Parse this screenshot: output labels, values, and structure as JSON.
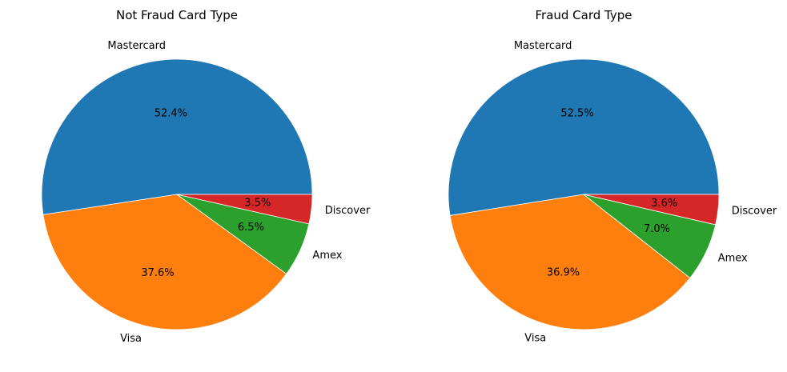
{
  "chart_data": [
    {
      "type": "pie",
      "title": "Not Fraud Card Type",
      "categories": [
        "Mastercard",
        "Visa",
        "Amex",
        "Discover"
      ],
      "values": [
        52.4,
        37.6,
        6.5,
        3.5
      ],
      "labels": [
        "52.4%",
        "37.6%",
        "6.5%",
        "3.5%"
      ],
      "colors": [
        "#1f77b4",
        "#ff7f0e",
        "#2ca02c",
        "#d62728"
      ]
    },
    {
      "type": "pie",
      "title": "Fraud Card Type",
      "categories": [
        "Mastercard",
        "Visa",
        "Amex",
        "Discover"
      ],
      "values": [
        52.5,
        36.9,
        7.0,
        3.6
      ],
      "labels": [
        "52.5%",
        "36.9%",
        "7.0%",
        "3.6%"
      ],
      "colors": [
        "#1f77b4",
        "#ff7f0e",
        "#2ca02c",
        "#d62728"
      ]
    }
  ]
}
